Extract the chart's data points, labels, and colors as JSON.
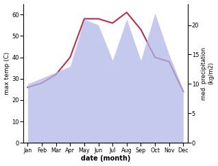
{
  "months": [
    "Jan",
    "Feb",
    "Mar",
    "Apr",
    "May",
    "Jun",
    "Jul",
    "Aug",
    "Sep",
    "Oct",
    "Nov",
    "Dec"
  ],
  "max_temp": [
    26,
    28,
    32,
    40,
    58,
    58,
    56,
    61,
    53,
    40,
    38,
    24
  ],
  "precipitation": [
    10,
    11,
    12,
    13,
    21,
    20,
    14,
    21,
    14,
    22,
    15,
    9
  ],
  "temp_color": "#b03050",
  "precip_fill_color": "#b0b8e8",
  "precip_fill_alpha": 0.75,
  "ylabel_left": "max temp (C)",
  "ylabel_right": "med. precipitation\n(kg/m2)",
  "xlabel": "date (month)",
  "ylim_left": [
    0,
    65
  ],
  "ylim_right": [
    0,
    23.6
  ],
  "yticks_left": [
    0,
    10,
    20,
    30,
    40,
    50,
    60
  ],
  "yticks_right": [
    0,
    5,
    10,
    15,
    20
  ],
  "background_color": "#ffffff"
}
